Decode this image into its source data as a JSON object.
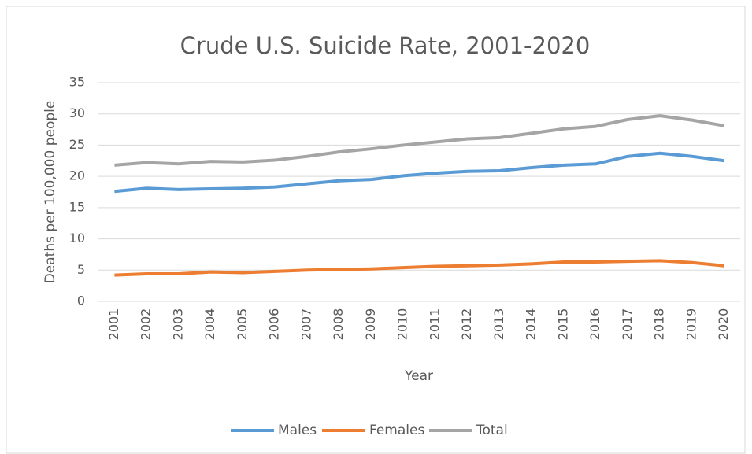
{
  "chart_data": {
    "type": "line",
    "title": "Crude U.S. Suicide Rate, 2001-2020",
    "x_label": "Year",
    "y_label": "Deaths per 100,000 people",
    "categories": [
      "2001",
      "2002",
      "2003",
      "2004",
      "2005",
      "2006",
      "2007",
      "2008",
      "2009",
      "2010",
      "2011",
      "2012",
      "2013",
      "2014",
      "2015",
      "2016",
      "2017",
      "2018",
      "2019",
      "2020"
    ],
    "series": [
      {
        "name": "Males",
        "color": "#5b9bd5",
        "values": [
          17.6,
          18.1,
          17.9,
          18.0,
          18.1,
          18.3,
          18.8,
          19.3,
          19.5,
          20.1,
          20.5,
          20.8,
          20.9,
          21.4,
          21.8,
          22.0,
          23.2,
          23.7,
          23.2,
          22.5
        ]
      },
      {
        "name": "Females",
        "color": "#ed7d31",
        "values": [
          4.2,
          4.4,
          4.4,
          4.7,
          4.6,
          4.8,
          5.0,
          5.1,
          5.2,
          5.4,
          5.6,
          5.7,
          5.8,
          6.0,
          6.3,
          6.3,
          6.4,
          6.5,
          6.2,
          5.7
        ]
      },
      {
        "name": "Total",
        "color": "#a5a5a5",
        "values": [
          21.8,
          22.2,
          22.0,
          22.4,
          22.3,
          22.6,
          23.2,
          23.9,
          24.4,
          25.0,
          25.5,
          26.0,
          26.2,
          26.9,
          27.6,
          28.0,
          29.1,
          29.7,
          29.0,
          28.1
        ]
      }
    ],
    "ylim": [
      0,
      35
    ],
    "yticks": [
      0,
      5,
      10,
      15,
      20,
      25,
      30,
      35
    ],
    "grid": true,
    "legend": "bottom"
  }
}
